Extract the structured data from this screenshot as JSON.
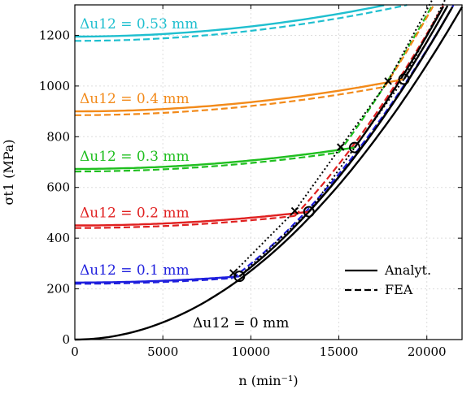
{
  "chart_data": {
    "type": "line",
    "xlabel": "n (min⁻¹)",
    "ylabel": "σt1 (MPa)",
    "xlim": [
      0,
      22000
    ],
    "ylim": [
      0,
      1320
    ],
    "x_ticks": [
      0,
      5000,
      10000,
      15000,
      20000
    ],
    "y_ticks": [
      0,
      200,
      400,
      600,
      800,
      1000,
      1200
    ],
    "x_tick_labels": [
      "0",
      "5000",
      "10000",
      "15000",
      "20000"
    ],
    "y_tick_labels": [
      "0",
      "200",
      "400",
      "600",
      "800",
      "1000",
      "1200"
    ],
    "grid": true,
    "legend": {
      "position": "lower-right",
      "entries": [
        {
          "label": "Analyt.",
          "style": "solid"
        },
        {
          "label": "FEA",
          "style": "dashed"
        }
      ]
    },
    "zero_curve": {
      "label": "Δu12 = 0 mm",
      "color": "#000000",
      "analytic_coeff": 2.71e-06,
      "fea_coeff": 2.55e-06,
      "pre_fit_coeff": 2.65e-06
    },
    "series": [
      {
        "label": "Δu12 = 0.1 mm",
        "color": "#1f1fdd",
        "base_analytic": 225,
        "base_fea": 220,
        "n_lift_analytic": 9350,
        "n_lift_fea": 8950,
        "cross_x": 9000
      },
      {
        "label": "Δu12 = 0.2 mm",
        "color": "#e02020",
        "base_analytic": 450,
        "base_fea": 440,
        "n_lift_analytic": 13300,
        "n_lift_fea": 12500,
        "cross_x": 12500
      },
      {
        "label": "Δu12 = 0.3 mm",
        "color": "#1fbf1f",
        "base_analytic": 673,
        "base_fea": 663,
        "n_lift_analytic": 15900,
        "n_lift_fea": 15000,
        "cross_x": 15100
      },
      {
        "label": "Δu12 = 0.4 mm",
        "color": "#f28a1a",
        "base_analytic": 900,
        "base_fea": 885,
        "n_lift_analytic": 18700,
        "n_lift_fea": 17600,
        "cross_x": 17800
      },
      {
        "label": "Δu12 = 0.53 mm",
        "color": "#1fbfcf",
        "base_analytic": 1195,
        "base_fea": 1178,
        "n_lift_analytic": 21300,
        "n_lift_fea": 20400,
        "cross_x": 20500
      }
    ]
  }
}
